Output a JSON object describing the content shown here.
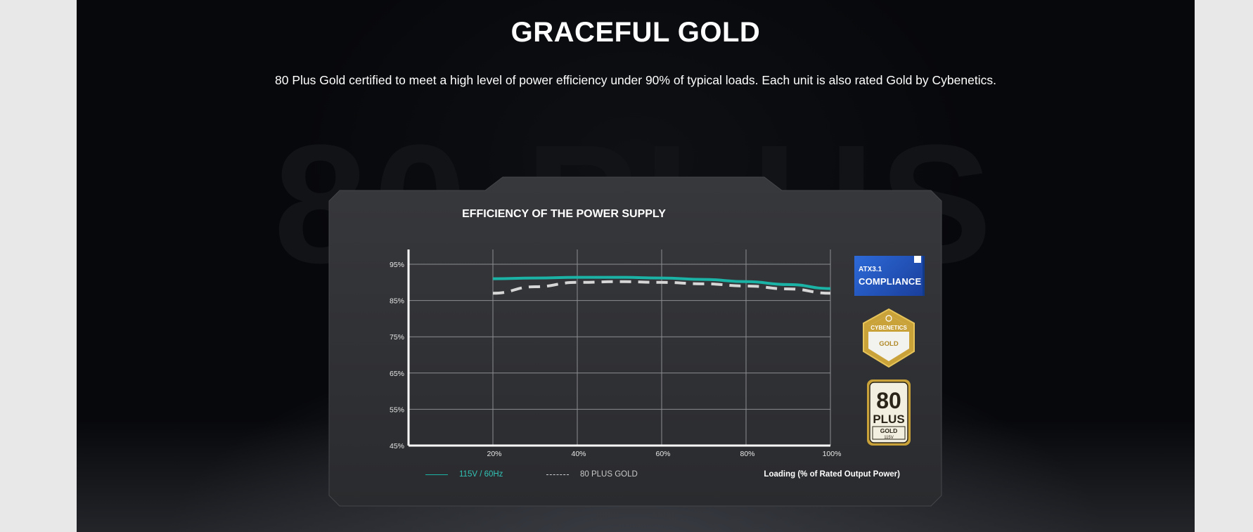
{
  "section": {
    "headline": "GRACEFUL GOLD",
    "description": "80 Plus Gold certified to meet a high level of power efficiency under 90% of typical loads. Each unit is also rated Gold by Cybenetics.",
    "background_text": "80 PLUS"
  },
  "badges": {
    "atx_line": "ATX3.1",
    "compliance": "COMPLIANCE",
    "cybenetics_brand": "CYBENETICS",
    "cybenetics_grade": "GOLD",
    "plus_number": "80",
    "plus_word": "PLUS",
    "plus_grade": "GOLD",
    "plus_voltage": "115V"
  },
  "colors": {
    "accent_teal": "#1bb3a6",
    "gold": "#c9a23a",
    "panel": "#2f3033"
  },
  "chart_data": {
    "type": "line",
    "title": "EFFICIENCY OF THE POWER SUPPLY",
    "xlabel": "Loading (% of Rated Output Power)",
    "ylabel": "",
    "x_ticks": [
      "20%",
      "40%",
      "60%",
      "80%",
      "100%"
    ],
    "y_ticks": [
      "95%",
      "85%",
      "75%",
      "65%",
      "55%",
      "45%"
    ],
    "ylim": [
      45,
      95
    ],
    "xlim": [
      0,
      100
    ],
    "grid": true,
    "legend_position": "bottom-left",
    "series": [
      {
        "name": "115V / 60Hz",
        "style": "solid",
        "color": "#1bb3a6",
        "x": [
          20,
          30,
          40,
          50,
          60,
          70,
          80,
          90,
          100
        ],
        "y": [
          91,
          91.2,
          91.4,
          91.4,
          91.2,
          90.8,
          90.2,
          89.4,
          88.3
        ]
      },
      {
        "name": "80 PLUS GOLD",
        "style": "dashed",
        "color": "#d6d6d6",
        "x": [
          20,
          30,
          40,
          50,
          60,
          70,
          80,
          90,
          100
        ],
        "y": [
          87,
          88.8,
          90,
          90.2,
          90,
          89.6,
          89,
          88.2,
          87
        ]
      }
    ]
  }
}
